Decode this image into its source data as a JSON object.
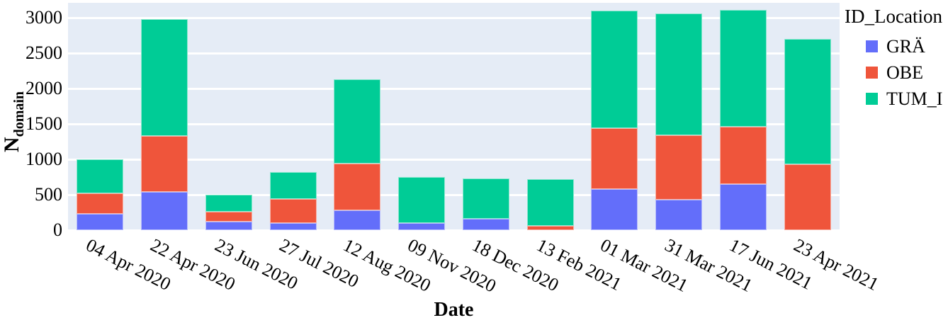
{
  "chart_data": {
    "type": "bar",
    "stacked": true,
    "xlabel": "Date",
    "ylabel_main": "N",
    "ylabel_sub": "domain",
    "legend_title": "ID_Location",
    "legend_position": "right",
    "grid": true,
    "categories": [
      "04 Apr 2020",
      "22 Apr 2020",
      "23 Jun 2020",
      "27 Jul 2020",
      "12 Aug 2020",
      "09 Nov 2020",
      "18 Dec 2020",
      "13 Feb 2021",
      "01 Mar 2021",
      "31 Mar 2021",
      "17 Jun 2021",
      "23 Apr 2021"
    ],
    "series": [
      {
        "name": "GRÄ",
        "color": "#636EFA",
        "values": [
          230,
          540,
          125,
          100,
          285,
          100,
          165,
          0,
          585,
          430,
          650,
          0
        ]
      },
      {
        "name": "OBE",
        "color": "#EF553B",
        "values": [
          290,
          790,
          140,
          340,
          655,
          0,
          0,
          65,
          855,
          910,
          810,
          935
        ]
      },
      {
        "name": "TUM_I",
        "color": "#00CC96",
        "values": [
          480,
          1650,
          235,
          380,
          1190,
          655,
          565,
          660,
          1660,
          1720,
          1650,
          1765
        ]
      }
    ],
    "yticks": [
      0,
      500,
      1000,
      1500,
      2000,
      2500,
      3000
    ],
    "ylim": [
      0,
      3210
    ],
    "tick_angle_deg": 27,
    "plot_bg_color": "#E5ECF6",
    "grid_color": "#FFFFFF"
  }
}
